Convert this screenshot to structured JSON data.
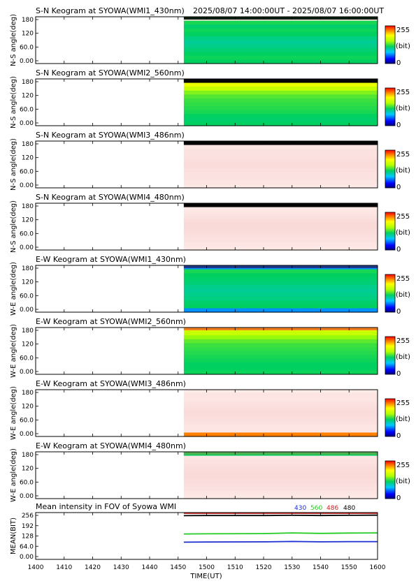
{
  "header": {
    "time_range": "2025/08/07 14:00:00UT - 2025/08/07 16:00:00UT"
  },
  "chart_data": [
    {
      "type": "heatmap",
      "title": "S-N Keogram at SYOWA(WMI1_430nm)",
      "ylabel": "N-S angle(deg)",
      "yticks": [
        "180",
        "120",
        "60.0",
        "0.00"
      ],
      "ylim": [
        0,
        180
      ],
      "data_start_utc": "1452",
      "colorbar": {
        "max": "255",
        "unit": "(bit)",
        "min": "0"
      },
      "rows_from_top": [
        0.95,
        0.47,
        0.44,
        0.46,
        0.45,
        0.42,
        0.4,
        0.41,
        0.43,
        0.45,
        0.46,
        0.45
      ],
      "colors": {
        "top_band": "#0b1f10"
      }
    },
    {
      "type": "heatmap",
      "title": "S-N Keogram at SYOWA(WMI2_560nm)",
      "ylabel": "N-S angle(deg)",
      "yticks": [
        "180",
        "120",
        "60.0",
        "0.00"
      ],
      "ylim": [
        0,
        180
      ],
      "data_start_utc": "1452",
      "colorbar": {
        "max": "255",
        "unit": "(bit)",
        "min": "0"
      },
      "rows_from_top": [
        0.0,
        0.71,
        0.64,
        0.56,
        0.52,
        0.5,
        0.49,
        0.48,
        0.47,
        0.45,
        0.44,
        0.45
      ],
      "colors": {
        "top_band": "#050505"
      }
    },
    {
      "type": "heatmap",
      "title": "S-N Keogram at SYOWA(WMI3_486nm)",
      "ylabel": "N-S angle(deg)",
      "yticks": [
        "180",
        "120",
        "60.0",
        "0.00"
      ],
      "ylim": [
        0,
        180
      ],
      "data_start_utc": "1452",
      "colorbar": {
        "max": "255",
        "unit": "(bit)",
        "min": "0"
      },
      "rows_from_top": [
        0.0,
        0.96,
        0.95,
        0.95,
        0.94,
        0.93,
        0.93,
        0.94,
        0.95,
        0.95,
        0.96,
        0.97
      ],
      "colors": {
        "top_band": "#050505"
      }
    },
    {
      "type": "heatmap",
      "title": "S-N Keogram at SYOWA(WMI4_480nm)",
      "ylabel": "N-S angle(deg)",
      "yticks": [
        "180",
        "120",
        "60.0",
        "0.00"
      ],
      "ylim": [
        0,
        180
      ],
      "data_start_utc": "1452",
      "colorbar": {
        "max": "255",
        "unit": "(bit)",
        "min": "0"
      },
      "rows_from_top": [
        0.0,
        0.97,
        0.96,
        0.95,
        0.93,
        0.92,
        0.92,
        0.93,
        0.94,
        0.95,
        0.96,
        0.97
      ],
      "colors": {
        "top_band": "#050505"
      }
    },
    {
      "type": "heatmap",
      "title": "E-W Keogram at SYOWA(WMI1_430nm)",
      "ylabel": "W-E angle(deg)",
      "yticks": [
        "180",
        "120",
        "60.0",
        "0.00"
      ],
      "ylim": [
        0,
        180
      ],
      "data_start_utc": "1452",
      "colorbar": {
        "max": "255",
        "unit": "(bit)",
        "min": "0"
      },
      "rows_from_top": [
        0.25,
        0.47,
        0.45,
        0.44,
        0.43,
        0.41,
        0.4,
        0.41,
        0.42,
        0.44,
        0.45,
        0.25
      ],
      "colors": {
        "top_band": "#1d3a8a"
      }
    },
    {
      "type": "heatmap",
      "title": "E-W Keogram at SYOWA(WMI2_560nm)",
      "ylabel": "W-E angle(deg)",
      "yticks": [
        "180",
        "120",
        "60.0",
        "0.00"
      ],
      "ylim": [
        0,
        180
      ],
      "data_start_utc": "1452",
      "colorbar": {
        "max": "255",
        "unit": "(bit)",
        "min": "0"
      },
      "rows_from_top": [
        0.68,
        0.64,
        0.58,
        0.53,
        0.5,
        0.49,
        0.48,
        0.47,
        0.46,
        0.45,
        0.45,
        0.46
      ],
      "colors": {
        "top_band": "#f07f1e"
      }
    },
    {
      "type": "heatmap",
      "title": "E-W Keogram at SYOWA(WMI3_486nm)",
      "ylabel": "W-E angle(deg)",
      "yticks": [
        "180",
        "120",
        "60.0",
        "0.00"
      ],
      "ylim": [
        0,
        180
      ],
      "data_start_utc": "1452",
      "colorbar": {
        "max": "255",
        "unit": "(bit)",
        "min": "0"
      },
      "rows_from_top": [
        0.97,
        0.96,
        0.96,
        0.95,
        0.94,
        0.93,
        0.93,
        0.94,
        0.95,
        0.96,
        0.96,
        0.88
      ],
      "colors": {
        "top_band": "#fbecea"
      }
    },
    {
      "type": "heatmap",
      "title": "E-W Keogram at SYOWA(WMI4_480nm)",
      "ylabel": "W-E angle(deg)",
      "yticks": [
        "180",
        "120",
        "60.0",
        "0.00"
      ],
      "ylim": [
        0,
        180
      ],
      "data_start_utc": "1452",
      "colorbar": {
        "max": "255",
        "unit": "(bit)",
        "min": "0"
      },
      "rows_from_top": [
        0.45,
        0.96,
        0.95,
        0.94,
        0.93,
        0.92,
        0.92,
        0.93,
        0.94,
        0.95,
        0.96,
        0.97
      ],
      "colors": {
        "top_band": "#4caf50"
      }
    },
    {
      "type": "line",
      "title": "Mean intensity in FOV of Syowa WMI",
      "ylabel": "MEAN(BIT)",
      "yticks": [
        "256",
        "192",
        "128",
        "64.0",
        "0.00"
      ],
      "ylim": [
        0,
        256
      ],
      "series": [
        {
          "name": "430",
          "color": "#1a2fd0",
          "x": [
            1452,
            1500,
            1520,
            1530,
            1540,
            1550,
            1600
          ],
          "y": [
            94,
            95,
            96,
            98,
            96,
            97,
            97
          ]
        },
        {
          "name": "560",
          "color": "#22cc22",
          "x": [
            1452,
            1500,
            1520,
            1530,
            1540,
            1550,
            1600
          ],
          "y": [
            139,
            140,
            141,
            145,
            142,
            144,
            145
          ]
        },
        {
          "name": "486",
          "color": "#cc2222",
          "x": [
            1452,
            1500,
            1520,
            1530,
            1540,
            1550,
            1600
          ],
          "y": [
            256,
            256,
            256,
            256,
            256,
            256,
            256
          ]
        },
        {
          "name": "480",
          "color": "#000000",
          "x": [
            1452,
            1500,
            1520,
            1530,
            1540,
            1550,
            1600
          ],
          "y": [
            239,
            240,
            240,
            241,
            240,
            241,
            242
          ]
        }
      ]
    }
  ],
  "xaxis": {
    "ticks": [
      "1400",
      "1410",
      "1420",
      "1430",
      "1440",
      "1450",
      "1500",
      "1510",
      "1520",
      "1530",
      "1540",
      "1550",
      "1600"
    ],
    "label": "TIME(UT)"
  }
}
